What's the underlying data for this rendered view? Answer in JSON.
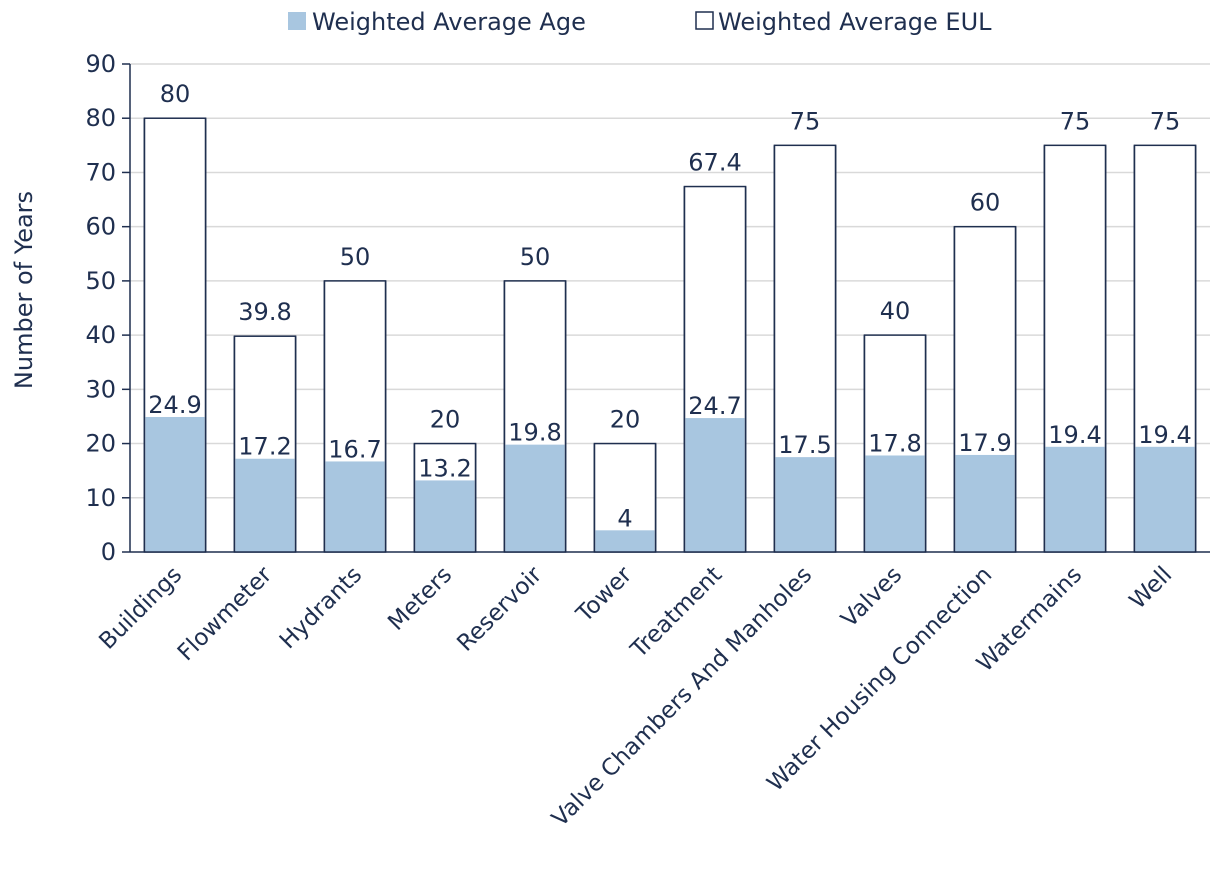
{
  "chart_data": {
    "type": "bar",
    "title": "",
    "xlabel": "",
    "ylabel": "Number of Years",
    "ylim": [
      0,
      90
    ],
    "yticks": [
      0,
      10,
      20,
      30,
      40,
      50,
      60,
      70,
      80,
      90
    ],
    "grid": true,
    "legend_position": "top-center",
    "categories": [
      "Buildings",
      "Flowmeter",
      "Hydrants",
      "Meters",
      "Reservoir",
      "Tower",
      "Treatment",
      "Valve Chambers And Manholes",
      "Valves",
      "Water Housing Connection",
      "Watermains",
      "Well"
    ],
    "series": [
      {
        "name": "Weighted Average Age",
        "color": "#a8c6e0",
        "values": [
          24.9,
          17.2,
          16.7,
          13.2,
          19.8,
          4,
          24.7,
          17.5,
          17.8,
          17.9,
          19.4,
          19.4
        ]
      },
      {
        "name": "Weighted Average EUL",
        "color": "#ffffff",
        "values": [
          80,
          39.8,
          50,
          20,
          50,
          20,
          67.4,
          75,
          40,
          60,
          75,
          75
        ]
      }
    ],
    "colors": {
      "outline": "#1f2f4f",
      "grid": "#d9d9d9",
      "text": "#1f2f4f"
    }
  }
}
